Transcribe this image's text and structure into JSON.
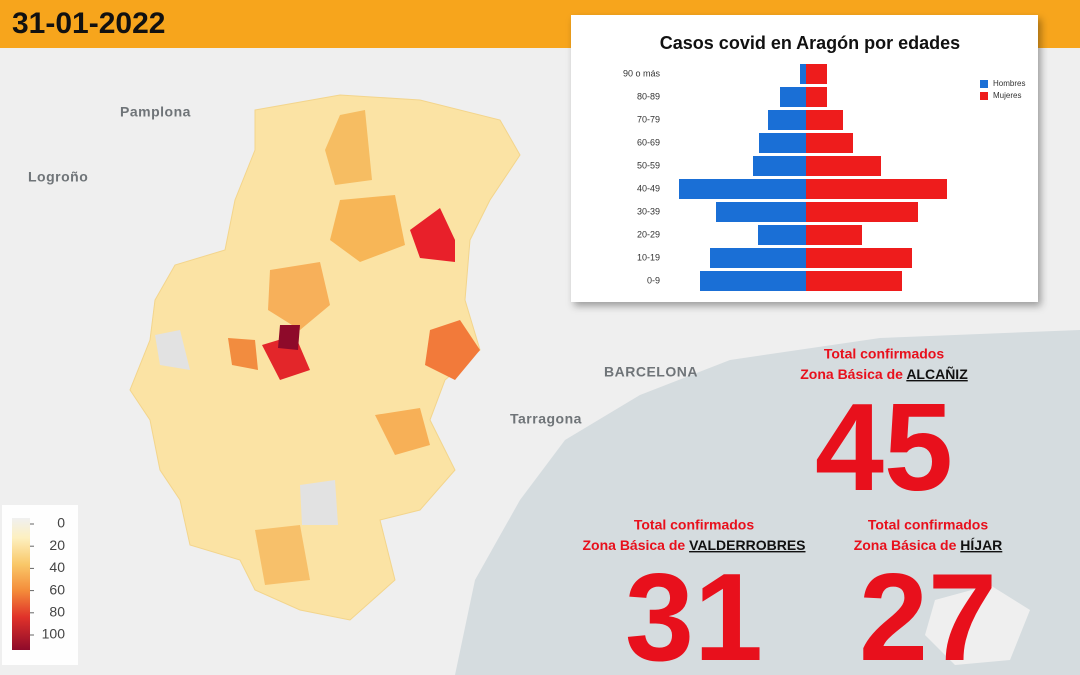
{
  "header": {
    "date": "31-01-2022"
  },
  "map": {
    "cities": [
      "Pamplona",
      "Logroño",
      "BARCELONA",
      "Tarragona"
    ],
    "colorbar": {
      "ticks": [
        0,
        20,
        40,
        60,
        80,
        100
      ]
    }
  },
  "zones": [
    {
      "title": "Total confirmados",
      "prefix": "Zona Básica de",
      "place": "ALCAÑIZ",
      "value": "45"
    },
    {
      "title": "Total confirmados",
      "prefix": "Zona Básica de",
      "place": "VALDERROBRES",
      "value": "31"
    },
    {
      "title": "Total confirmados",
      "prefix": "Zona Básica de",
      "place": "HÍJAR",
      "value": "27"
    }
  ],
  "chart_data": {
    "type": "pyramid",
    "title": "Casos covid en Aragón por edades",
    "categories": [
      "90 o más",
      "80-89",
      "70-79",
      "60-69",
      "50-59",
      "40-49",
      "30-39",
      "20-29",
      "10-19",
      "0-9"
    ],
    "series": [
      {
        "name": "Hombres",
        "color": "#1a6fd6",
        "values": [
          6,
          26,
          38,
          47,
          53,
          127,
          90,
          48,
          96,
          106
        ]
      },
      {
        "name": "Mujeres",
        "color": "#ee1c1c",
        "values": [
          21,
          21,
          37,
          47,
          75,
          141,
          112,
          56,
          106,
          96
        ]
      }
    ],
    "legend": "top-right"
  }
}
